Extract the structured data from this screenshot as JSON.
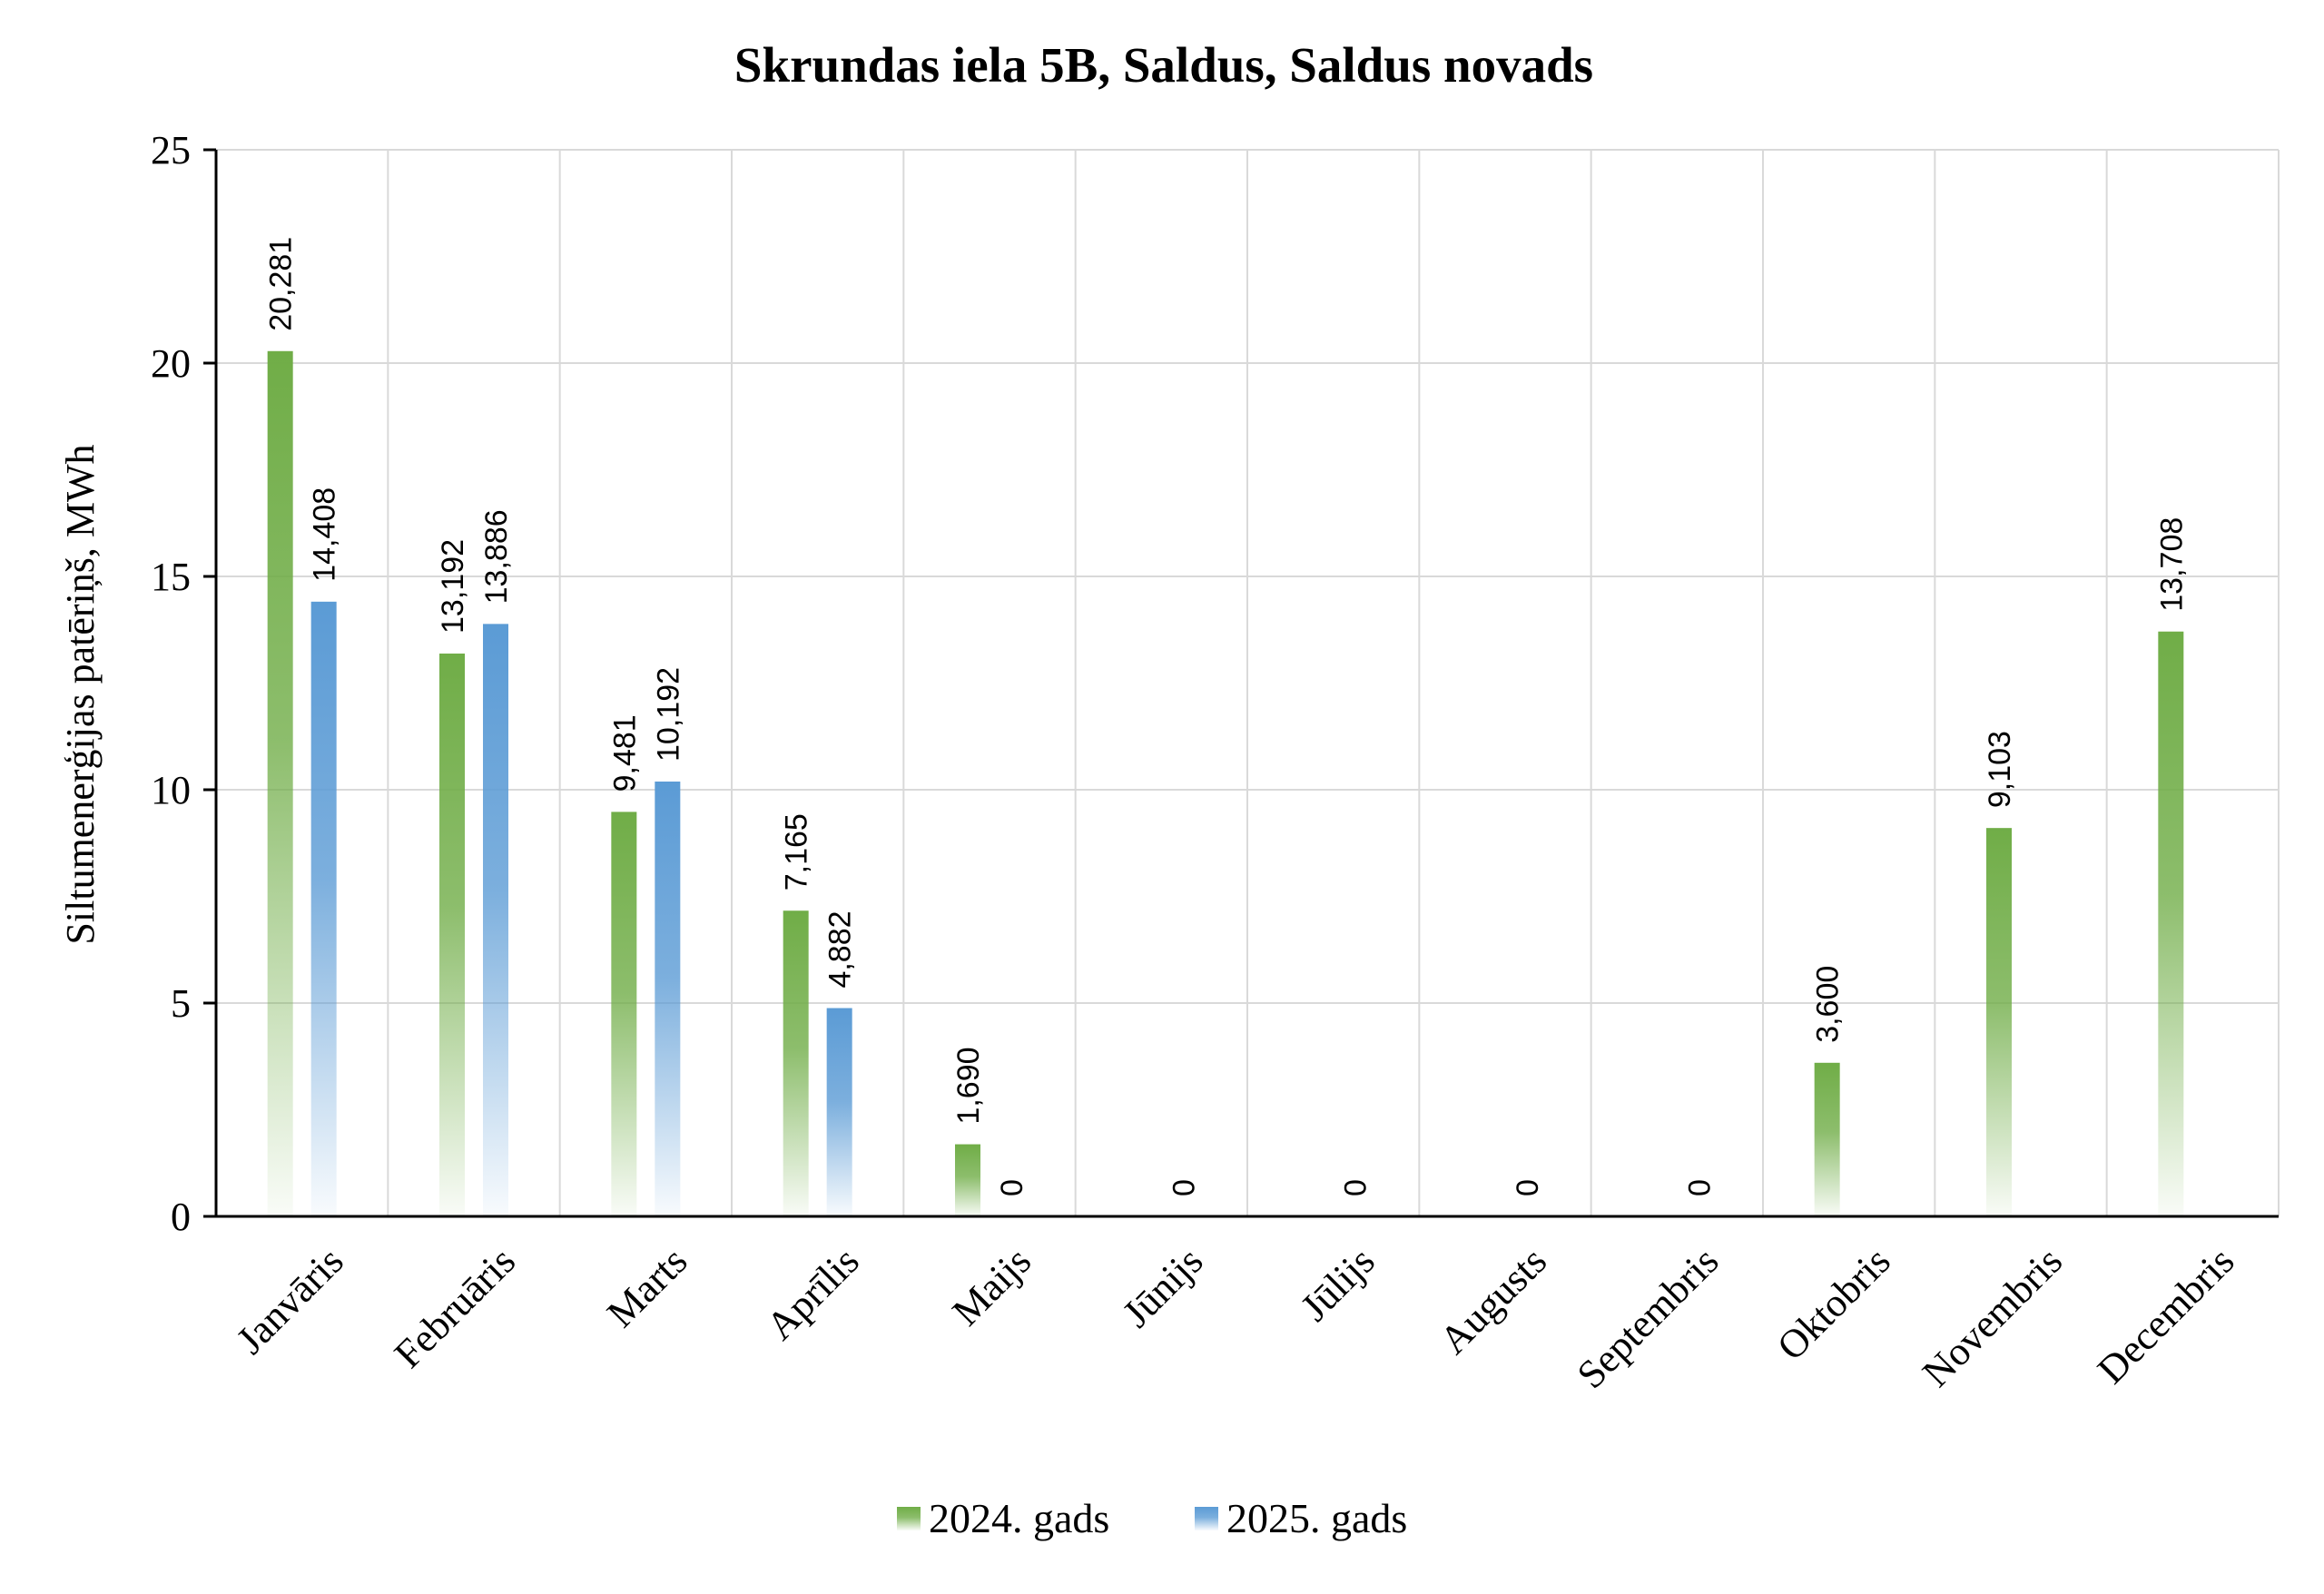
{
  "chart_data": {
    "type": "bar",
    "title": "Skrundas iela 5B, Saldus, Saldus novads",
    "ylabel": "Siltumenerģijas patēriņš, MWh",
    "xlabel": "",
    "ylim": [
      0,
      25
    ],
    "yticks": [
      0,
      5,
      10,
      15,
      20,
      25
    ],
    "ytick_labels": [
      "0",
      "5",
      "10",
      "15",
      "20",
      "25"
    ],
    "grid": true,
    "legend_position": "bottom",
    "categories": [
      "Janvāris",
      "Februāris",
      "Marts",
      "Aprīlis",
      "Maijs",
      "Jūnijs",
      "Jūlijs",
      "Augusts",
      "Septembris",
      "Oktobris",
      "Novembris",
      "Decembris"
    ],
    "series": [
      {
        "name": "2024. gads",
        "color": "#70AD47",
        "values": [
          20.281,
          13.192,
          9.481,
          7.165,
          1.69,
          null,
          null,
          null,
          null,
          3.6,
          9.103,
          13.708
        ],
        "labels": [
          "20,281",
          "13,192",
          "9,481",
          "7,165",
          "1,690",
          "",
          "",
          "",
          "",
          "3,600",
          "9,103",
          "13,708"
        ]
      },
      {
        "name": "2025. gads",
        "color": "#5B9BD5",
        "values": [
          14.408,
          13.886,
          10.192,
          4.882,
          0,
          0,
          0,
          0,
          0,
          null,
          null,
          null
        ],
        "labels": [
          "14,408",
          "13,886",
          "10,192",
          "4,882",
          "0",
          "0",
          "0",
          "0",
          "0",
          "",
          "",
          ""
        ]
      }
    ]
  }
}
